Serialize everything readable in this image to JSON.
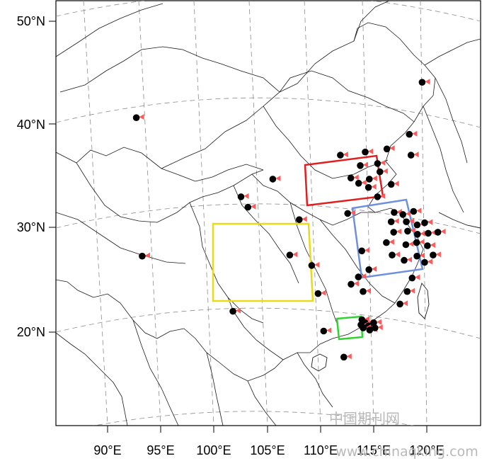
{
  "map": {
    "lat_labels": [
      "50°N",
      "40°N",
      "30°N",
      "20°N"
    ],
    "lon_labels": [
      "90°E",
      "95°E",
      "100°E",
      "105°E",
      "110°E",
      "115°E",
      "120°E"
    ],
    "regions": [
      {
        "name": "north-china-box",
        "color": "#e02020"
      },
      {
        "name": "east-china-box",
        "color": "#6e8fe0"
      },
      {
        "name": "sichuan-basin-box",
        "color": "#ecd91a"
      },
      {
        "name": "pearl-river-delta-box",
        "color": "#2fd42f"
      }
    ],
    "marker_colors": {
      "station_dot": "#000000",
      "arrow": "#ff5a5a"
    },
    "stations": [
      {
        "lon": 94.1,
        "lat": 40.6
      },
      {
        "lon": 94.0,
        "lat": 27.3
      },
      {
        "lon": 102.2,
        "lat": 22.0
      },
      {
        "lon": 104.0,
        "lat": 32.0
      },
      {
        "lon": 103.4,
        "lat": 33.0
      },
      {
        "lon": 106.4,
        "lat": 34.7
      },
      {
        "lon": 108.7,
        "lat": 30.8
      },
      {
        "lon": 107.7,
        "lat": 27.4
      },
      {
        "lon": 109.7,
        "lat": 26.4
      },
      {
        "lon": 110.2,
        "lat": 23.7
      },
      {
        "lon": 110.6,
        "lat": 20.1
      },
      {
        "lon": 112.4,
        "lat": 17.6
      },
      {
        "lon": 113.2,
        "lat": 31.4
      },
      {
        "lon": 114.4,
        "lat": 27.8
      },
      {
        "lon": 115.0,
        "lat": 26.0
      },
      {
        "lon": 114.0,
        "lat": 25.3
      },
      {
        "lon": 113.3,
        "lat": 24.6
      },
      {
        "lon": 114.4,
        "lat": 23.9
      },
      {
        "lon": 112.7,
        "lat": 37.0
      },
      {
        "lon": 115.0,
        "lat": 37.3
      },
      {
        "lon": 116.1,
        "lat": 36.2
      },
      {
        "lon": 117.0,
        "lat": 37.6
      },
      {
        "lon": 114.5,
        "lat": 36.0
      },
      {
        "lon": 113.6,
        "lat": 34.8
      },
      {
        "lon": 114.3,
        "lat": 34.3
      },
      {
        "lon": 115.3,
        "lat": 34.7
      },
      {
        "lon": 116.3,
        "lat": 35.4
      },
      {
        "lon": 115.2,
        "lat": 33.9
      },
      {
        "lon": 117.3,
        "lat": 34.2
      },
      {
        "lon": 116.0,
        "lat": 33.0
      },
      {
        "lon": 119.1,
        "lat": 39.0
      },
      {
        "lon": 119.2,
        "lat": 37.0
      },
      {
        "lon": 120.4,
        "lat": 44.0
      },
      {
        "lon": 117.5,
        "lat": 31.5
      },
      {
        "lon": 118.3,
        "lat": 31.3
      },
      {
        "lon": 119.3,
        "lat": 31.6
      },
      {
        "lon": 117.2,
        "lat": 30.6
      },
      {
        "lon": 118.6,
        "lat": 30.6
      },
      {
        "lon": 119.6,
        "lat": 30.3
      },
      {
        "lon": 120.3,
        "lat": 30.5
      },
      {
        "lon": 117.4,
        "lat": 29.6
      },
      {
        "lon": 118.7,
        "lat": 29.7
      },
      {
        "lon": 119.6,
        "lat": 29.4
      },
      {
        "lon": 120.6,
        "lat": 29.5
      },
      {
        "lon": 121.5,
        "lat": 29.6
      },
      {
        "lon": 116.7,
        "lat": 28.6
      },
      {
        "lon": 118.5,
        "lat": 28.4
      },
      {
        "lon": 119.5,
        "lat": 28.6
      },
      {
        "lon": 120.5,
        "lat": 28.3
      },
      {
        "lon": 117.2,
        "lat": 27.4
      },
      {
        "lon": 118.3,
        "lat": 26.9
      },
      {
        "lon": 119.5,
        "lat": 27.3
      },
      {
        "lon": 120.2,
        "lat": 26.7
      },
      {
        "lon": 121.0,
        "lat": 27.4
      },
      {
        "lon": 119.0,
        "lat": 25.2
      },
      {
        "lon": 118.5,
        "lat": 23.9
      },
      {
        "lon": 117.8,
        "lat": 22.7
      },
      {
        "lon": 114.2,
        "lat": 21.2
      },
      {
        "lon": 114.5,
        "lat": 20.9
      },
      {
        "lon": 114.1,
        "lat": 20.7
      },
      {
        "lon": 114.8,
        "lat": 20.6
      },
      {
        "lon": 115.3,
        "lat": 20.9
      },
      {
        "lon": 114.3,
        "lat": 20.4
      },
      {
        "lon": 114.9,
        "lat": 20.2
      },
      {
        "lon": 115.4,
        "lat": 20.4
      }
    ]
  },
  "watermark": {
    "line1": "中国期刊网",
    "line2": "www.chinaqking.com"
  }
}
